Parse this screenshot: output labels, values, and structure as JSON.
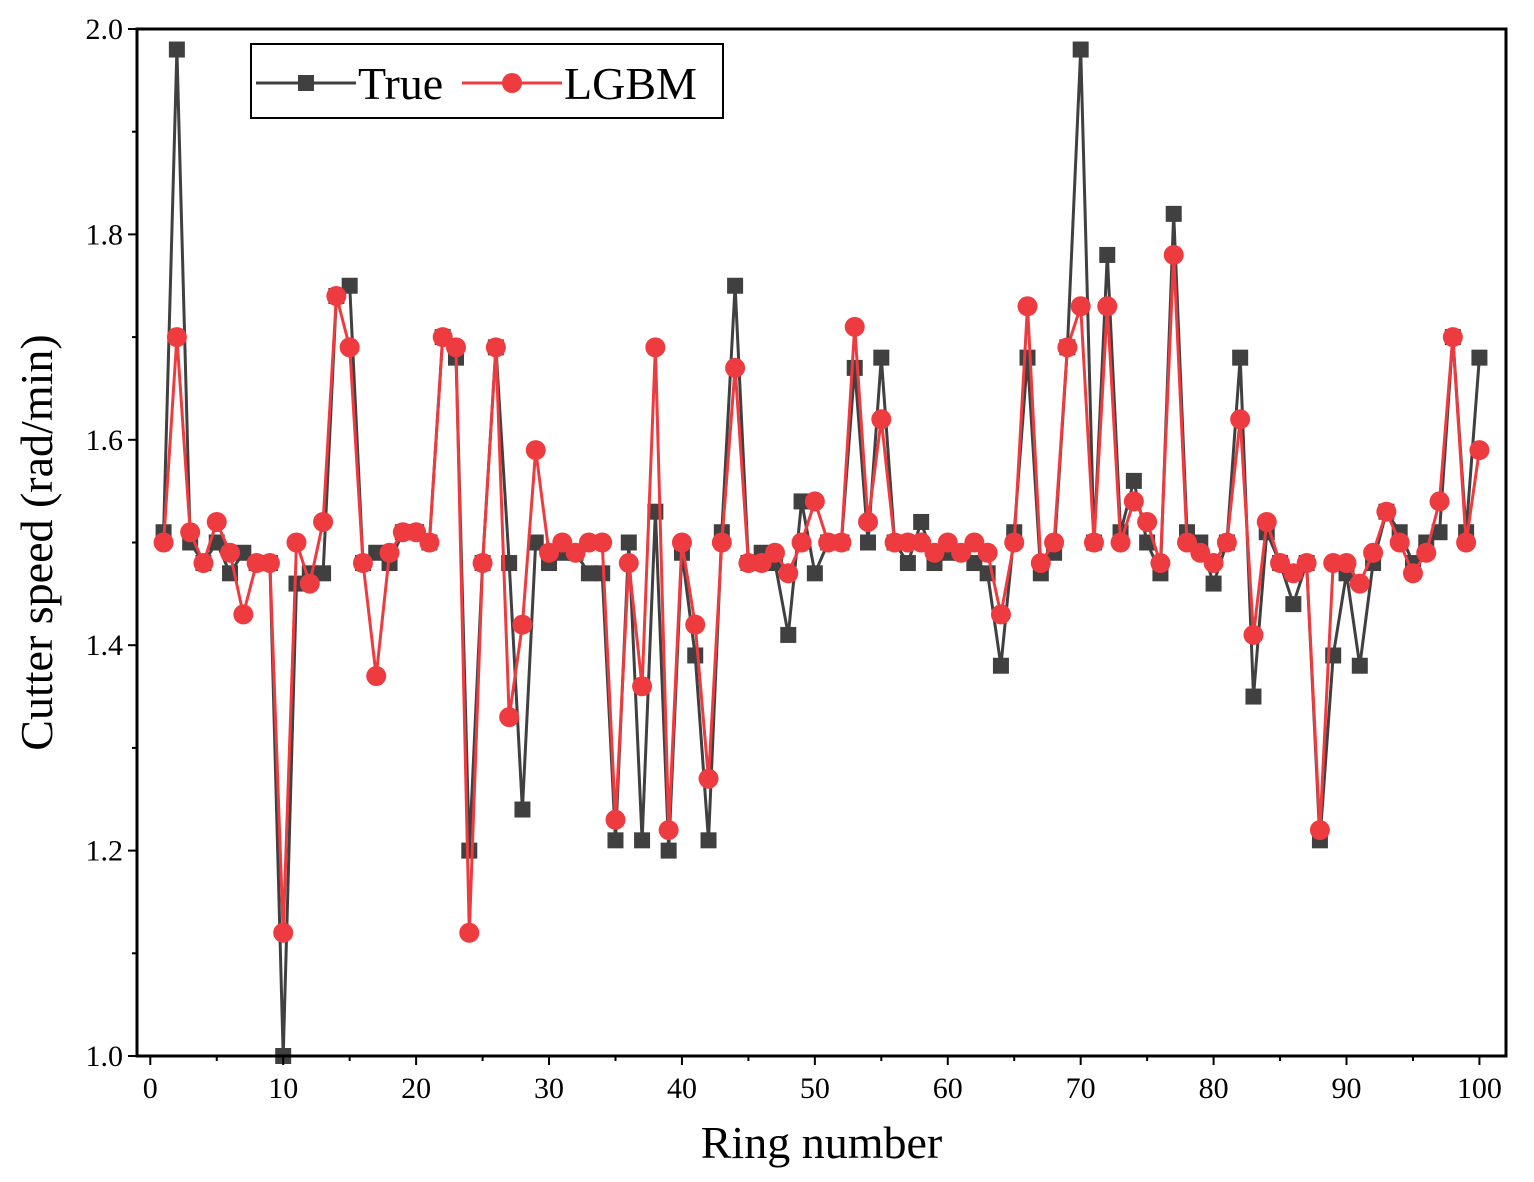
{
  "chart_data": {
    "type": "line",
    "title": "",
    "xlabel": "Ring number",
    "ylabel": "Cutter speed (rad/min)",
    "xlim": [
      -1,
      102
    ],
    "ylim": [
      1.0,
      2.0
    ],
    "xticks": [
      0,
      10,
      20,
      30,
      40,
      50,
      60,
      70,
      80,
      90,
      100
    ],
    "yticks": [
      1.0,
      1.2,
      1.4,
      1.6,
      1.8,
      2.0
    ],
    "ytick_labels": [
      "1.0",
      "1.2",
      "1.4",
      "1.6",
      "1.8",
      "2.0"
    ],
    "grid": false,
    "legend_position": "top-left",
    "series": [
      {
        "name": "True",
        "color": "#404040",
        "marker": "square",
        "x": [
          1,
          2,
          3,
          4,
          5,
          6,
          7,
          8,
          9,
          10,
          11,
          12,
          13,
          14,
          15,
          16,
          17,
          18,
          19,
          20,
          21,
          22,
          23,
          24,
          25,
          26,
          27,
          28,
          29,
          30,
          31,
          32,
          33,
          34,
          35,
          36,
          37,
          38,
          39,
          40,
          41,
          42,
          43,
          44,
          45,
          46,
          47,
          48,
          49,
          50,
          51,
          52,
          53,
          54,
          55,
          56,
          57,
          58,
          59,
          60,
          61,
          62,
          63,
          64,
          65,
          66,
          67,
          68,
          69,
          70,
          71,
          72,
          73,
          74,
          75,
          76,
          77,
          78,
          79,
          80,
          81,
          82,
          83,
          84,
          85,
          86,
          87,
          88,
          89,
          90,
          91,
          92,
          93,
          94,
          95,
          96,
          97,
          98,
          99,
          100
        ],
        "values": [
          1.51,
          1.98,
          1.5,
          1.48,
          1.5,
          1.47,
          1.49,
          1.48,
          1.48,
          1.0,
          1.46,
          1.47,
          1.47,
          1.74,
          1.75,
          1.48,
          1.49,
          1.48,
          1.51,
          1.51,
          1.5,
          1.7,
          1.68,
          1.2,
          1.48,
          1.69,
          1.48,
          1.24,
          1.5,
          1.48,
          1.49,
          1.49,
          1.47,
          1.47,
          1.21,
          1.5,
          1.21,
          1.53,
          1.2,
          1.49,
          1.39,
          1.21,
          1.51,
          1.75,
          1.48,
          1.49,
          1.48,
          1.41,
          1.54,
          1.47,
          1.5,
          1.5,
          1.67,
          1.5,
          1.68,
          1.5,
          1.48,
          1.52,
          1.48,
          1.49,
          1.49,
          1.48,
          1.47,
          1.38,
          1.51,
          1.68,
          1.47,
          1.49,
          1.69,
          1.98,
          1.5,
          1.78,
          1.51,
          1.56,
          1.5,
          1.47,
          1.82,
          1.51,
          1.5,
          1.46,
          1.5,
          1.68,
          1.35,
          1.51,
          1.48,
          1.44,
          1.48,
          1.21,
          1.39,
          1.47,
          1.38,
          1.48,
          1.53,
          1.51,
          1.48,
          1.5,
          1.51,
          1.7,
          1.51,
          1.68
        ]
      },
      {
        "name": "LGBM",
        "color": "#ee3b3f",
        "marker": "circle",
        "x": [
          1,
          2,
          3,
          4,
          5,
          6,
          7,
          8,
          9,
          10,
          11,
          12,
          13,
          14,
          15,
          16,
          17,
          18,
          19,
          20,
          21,
          22,
          23,
          24,
          25,
          26,
          27,
          28,
          29,
          30,
          31,
          32,
          33,
          34,
          35,
          36,
          37,
          38,
          39,
          40,
          41,
          42,
          43,
          44,
          45,
          46,
          47,
          48,
          49,
          50,
          51,
          52,
          53,
          54,
          55,
          56,
          57,
          58,
          59,
          60,
          61,
          62,
          63,
          64,
          65,
          66,
          67,
          68,
          69,
          70,
          71,
          72,
          73,
          74,
          75,
          76,
          77,
          78,
          79,
          80,
          81,
          82,
          83,
          84,
          85,
          86,
          87,
          88,
          89,
          90,
          91,
          92,
          93,
          94,
          95,
          96,
          97,
          98,
          99,
          100
        ],
        "values": [
          1.5,
          1.7,
          1.51,
          1.48,
          1.52,
          1.49,
          1.43,
          1.48,
          1.48,
          1.12,
          1.5,
          1.46,
          1.52,
          1.74,
          1.69,
          1.48,
          1.37,
          1.49,
          1.51,
          1.51,
          1.5,
          1.7,
          1.69,
          1.12,
          1.48,
          1.69,
          1.33,
          1.42,
          1.59,
          1.49,
          1.5,
          1.49,
          1.5,
          1.5,
          1.23,
          1.48,
          1.36,
          1.69,
          1.22,
          1.5,
          1.42,
          1.27,
          1.5,
          1.67,
          1.48,
          1.48,
          1.49,
          1.47,
          1.5,
          1.54,
          1.5,
          1.5,
          1.71,
          1.52,
          1.62,
          1.5,
          1.5,
          1.5,
          1.49,
          1.5,
          1.49,
          1.5,
          1.49,
          1.43,
          1.5,
          1.73,
          1.48,
          1.5,
          1.69,
          1.73,
          1.5,
          1.73,
          1.5,
          1.54,
          1.52,
          1.48,
          1.78,
          1.5,
          1.49,
          1.48,
          1.5,
          1.62,
          1.41,
          1.52,
          1.48,
          1.47,
          1.48,
          1.22,
          1.48,
          1.48,
          1.46,
          1.49,
          1.53,
          1.5,
          1.47,
          1.49,
          1.54,
          1.7,
          1.5,
          1.59
        ]
      }
    ]
  }
}
